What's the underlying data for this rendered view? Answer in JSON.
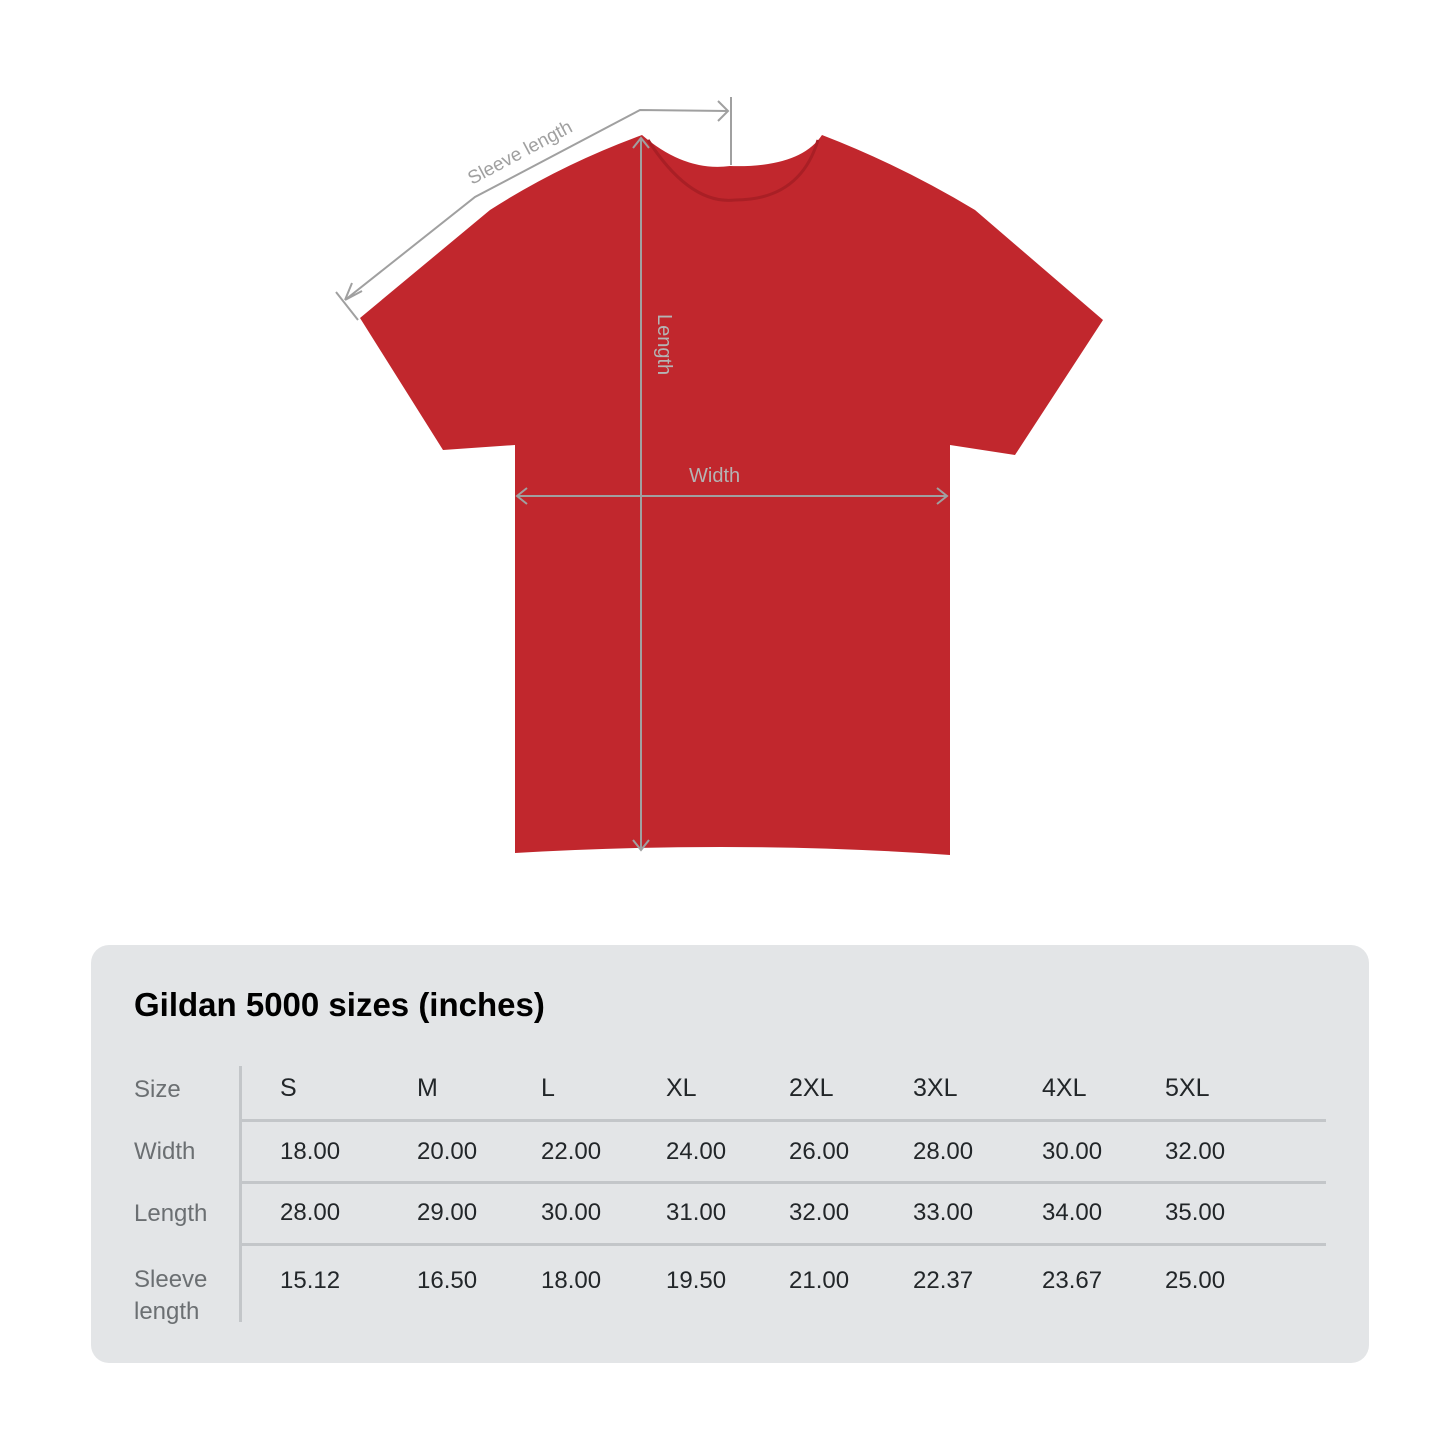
{
  "diagram": {
    "shirt_color": "#c1272d",
    "measure_line_color": "#a0a0a0",
    "labels": {
      "sleeve": "Sleeve length",
      "length": "Length",
      "width": "Width"
    }
  },
  "table": {
    "title": "Gildan 5000 sizes (inches)",
    "row_labels": [
      "Size",
      "Width",
      "Length",
      "Sleeve length"
    ],
    "sizes": [
      "S",
      "M",
      "L",
      "XL",
      "2XL",
      "3XL",
      "4XL",
      "5XL"
    ],
    "rows": {
      "width": [
        "18.00",
        "20.00",
        "22.00",
        "24.00",
        "26.00",
        "28.00",
        "30.00",
        "32.00"
      ],
      "length": [
        "28.00",
        "29.00",
        "30.00",
        "31.00",
        "32.00",
        "33.00",
        "34.00",
        "35.00"
      ],
      "sleeve": [
        "15.12",
        "16.50",
        "18.00",
        "19.50",
        "21.00",
        "22.37",
        "23.67",
        "25.00"
      ]
    }
  }
}
